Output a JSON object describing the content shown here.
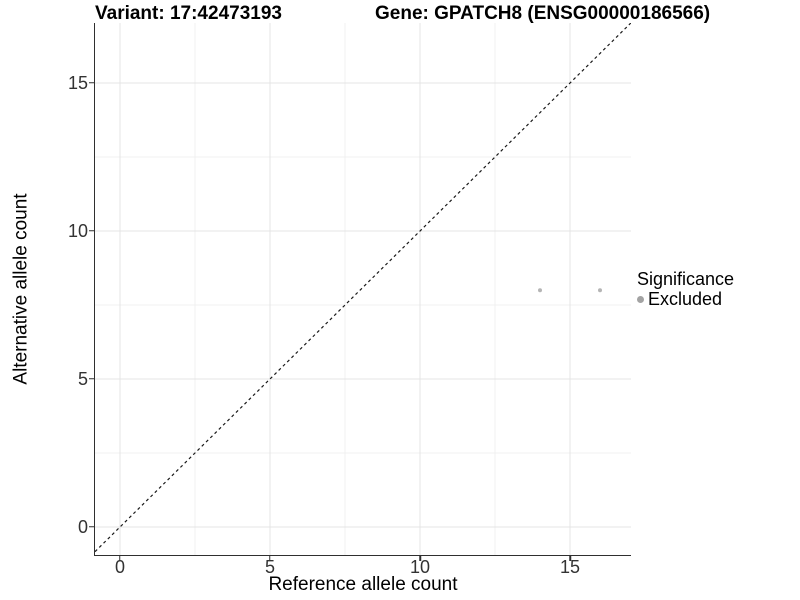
{
  "chart_data": {
    "type": "scatter",
    "titles": {
      "left": "Variant: 17:42473193",
      "right": "Gene: GPATCH8 (ENSG00000186566)"
    },
    "xlabel": "Reference allele count",
    "ylabel": "Alternative allele count",
    "xlim": [
      -0.833,
      17.033
    ],
    "ylim": [
      -0.946,
      17.027
    ],
    "x_ticks": [
      0,
      5,
      10,
      15
    ],
    "y_ticks": [
      0,
      5,
      10,
      15
    ],
    "x_minor_ticks": [
      2.5,
      7.5,
      12.5
    ],
    "y_minor_ticks": [
      2.5,
      7.5,
      12.5
    ],
    "grid": "major+minor",
    "identity_line": {
      "style": "dashed",
      "slope": 1,
      "intercept": 0,
      "color": "#1a1a1a"
    },
    "series": [
      {
        "name": "Excluded",
        "color": "#b5b5b5",
        "points": [
          {
            "x": 14,
            "y": 8
          },
          {
            "x": 16,
            "y": 8
          }
        ]
      }
    ],
    "legend": {
      "position": "right",
      "title": "Significance",
      "items": [
        {
          "label": "Excluded",
          "color": "#a3a3a3",
          "marker": "circle"
        }
      ]
    },
    "colors": {
      "grid_major": "#e4e4e4",
      "grid_minor": "#f1f1f1",
      "axis_line": "#2f2f2f"
    }
  }
}
